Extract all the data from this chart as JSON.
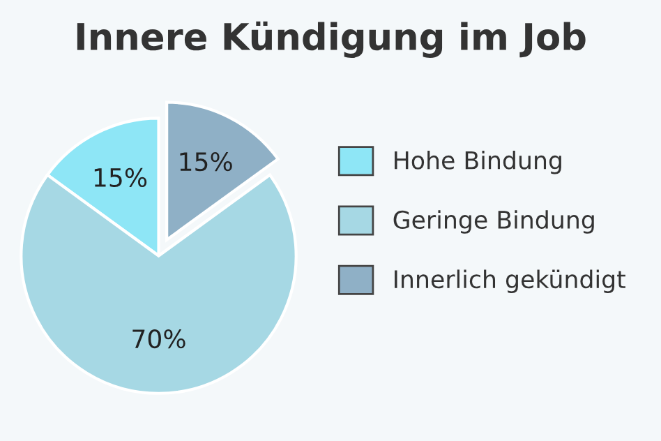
{
  "chart_data": {
    "type": "pie",
    "title": "Innere Kündigung im Job",
    "categories": [
      "Hohe Bindung",
      "Geringe Bindung",
      "Innerlich gekündigt"
    ],
    "values": [
      15,
      70,
      15
    ],
    "value_labels": [
      "15%",
      "70%",
      "15%"
    ],
    "colors": [
      "#8ee6f6",
      "#a6d8e4",
      "#8fb0c6"
    ],
    "legend": "right"
  }
}
